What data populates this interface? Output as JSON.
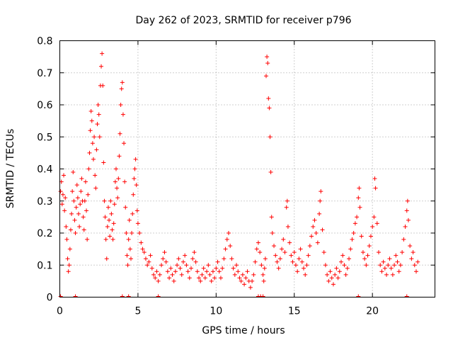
{
  "chart_data": {
    "type": "scatter",
    "title": "Day 262 of 2023, SRMTID for receiver p796",
    "xlabel": "GPS time / hours",
    "ylabel": "SRMTID / TECUs",
    "xlim": [
      0,
      24
    ],
    "ylim": [
      0,
      0.8
    ],
    "x_ticks": [
      0,
      5,
      10,
      15,
      20
    ],
    "y_ticks": [
      0,
      0.1,
      0.2,
      0.3,
      0.4,
      0.5,
      0.6,
      0.7,
      0.8
    ],
    "x_tick_labels": [
      "0",
      "5",
      "10",
      "15",
      "20"
    ],
    "y_tick_labels": [
      "0",
      "0.1",
      "0.2",
      "0.3",
      "0.4",
      "0.5",
      "0.6",
      "0.7",
      "0.8"
    ],
    "grid": true,
    "marker": "+",
    "series": [
      {
        "name": "SRMTID",
        "color": "#ff0000",
        "points": [
          [
            0.05,
            0.33
          ],
          [
            0.1,
            0.36
          ],
          [
            0.15,
            0.29
          ],
          [
            0.2,
            0.32
          ],
          [
            0.25,
            0.38
          ],
          [
            0.3,
            0.27
          ],
          [
            0.35,
            0.31
          ],
          [
            0.4,
            0.22
          ],
          [
            0.45,
            0.18
          ],
          [
            0.5,
            0.12
          ],
          [
            0.55,
            0.08
          ],
          [
            0.6,
            0.1
          ],
          [
            0.65,
            0.15
          ],
          [
            0.7,
            0.21
          ],
          [
            0.75,
            0.26
          ],
          [
            0.8,
            0.33
          ],
          [
            0.85,
            0.39
          ],
          [
            0.9,
            0.3
          ],
          [
            0.95,
            0.24
          ],
          [
            1.0,
            0.2
          ],
          [
            1.05,
            0.28
          ],
          [
            1.1,
            0.35
          ],
          [
            1.15,
            0.31
          ],
          [
            1.2,
            0.26
          ],
          [
            1.25,
            0.22
          ],
          [
            1.3,
            0.29
          ],
          [
            1.35,
            0.33
          ],
          [
            1.4,
            0.37
          ],
          [
            1.45,
            0.3
          ],
          [
            1.5,
            0.25
          ],
          [
            1.55,
            0.21
          ],
          [
            1.6,
            0.3
          ],
          [
            1.65,
            0.36
          ],
          [
            1.7,
            0.27
          ],
          [
            1.75,
            0.18
          ],
          [
            1.8,
            0.32
          ],
          [
            1.85,
            0.4
          ],
          [
            1.9,
            0.45
          ],
          [
            1.95,
            0.52
          ],
          [
            2.0,
            0.58
          ],
          [
            2.05,
            0.55
          ],
          [
            2.1,
            0.48
          ],
          [
            2.15,
            0.43
          ],
          [
            2.2,
            0.5
          ],
          [
            2.25,
            0.38
          ],
          [
            2.3,
            0.34
          ],
          [
            2.35,
            0.46
          ],
          [
            2.4,
            0.54
          ],
          [
            2.45,
            0.6
          ],
          [
            2.5,
            0.57
          ],
          [
            2.55,
            0.5
          ],
          [
            2.6,
            0.66
          ],
          [
            2.65,
            0.72
          ],
          [
            2.7,
            0.76
          ],
          [
            2.75,
            0.66
          ],
          [
            2.8,
            0.42
          ],
          [
            2.85,
            0.3
          ],
          [
            2.9,
            0.25
          ],
          [
            2.95,
            0.18
          ],
          [
            3.0,
            0.12
          ],
          [
            3.05,
            0.22
          ],
          [
            3.1,
            0.28
          ],
          [
            3.15,
            0.24
          ],
          [
            3.2,
            0.19
          ],
          [
            3.25,
            0.3
          ],
          [
            3.3,
            0.26
          ],
          [
            3.35,
            0.21
          ],
          [
            3.4,
            0.18
          ],
          [
            3.45,
            0.23
          ],
          [
            3.5,
            0.29
          ],
          [
            3.55,
            0.36
          ],
          [
            3.6,
            0.4
          ],
          [
            3.65,
            0.34
          ],
          [
            3.7,
            0.31
          ],
          [
            3.75,
            0.37
          ],
          [
            3.8,
            0.44
          ],
          [
            3.85,
            0.51
          ],
          [
            3.9,
            0.6
          ],
          [
            3.95,
            0.65
          ],
          [
            4.0,
            0.67
          ],
          [
            4.05,
            0.57
          ],
          [
            4.1,
            0.48
          ],
          [
            4.15,
            0.36
          ],
          [
            4.2,
            0.28
          ],
          [
            4.25,
            0.2
          ],
          [
            4.3,
            0.13
          ],
          [
            4.35,
            0.1
          ],
          [
            4.4,
            0.18
          ],
          [
            4.45,
            0.24
          ],
          [
            4.5,
            0.15
          ],
          [
            4.55,
            0.12
          ],
          [
            4.6,
            0.2
          ],
          [
            4.65,
            0.26
          ],
          [
            4.7,
            0.32
          ],
          [
            4.75,
            0.37
          ],
          [
            4.8,
            0.4
          ],
          [
            4.85,
            0.43
          ],
          [
            4.9,
            0.35
          ],
          [
            4.95,
            0.27
          ],
          [
            5.0,
            0.23
          ],
          [
            5.1,
            0.2
          ],
          [
            5.2,
            0.17
          ],
          [
            5.3,
            0.15
          ],
          [
            5.4,
            0.14
          ],
          [
            5.5,
            0.12
          ],
          [
            5.6,
            0.1
          ],
          [
            5.7,
            0.11
          ],
          [
            5.8,
            0.13
          ],
          [
            5.9,
            0.09
          ],
          [
            6.0,
            0.07
          ],
          [
            6.1,
            0.06
          ],
          [
            6.2,
            0.08
          ],
          [
            6.3,
            0.05
          ],
          [
            6.4,
            0.07
          ],
          [
            6.5,
            0.1
          ],
          [
            6.6,
            0.12
          ],
          [
            6.7,
            0.14
          ],
          [
            6.8,
            0.11
          ],
          [
            6.9,
            0.08
          ],
          [
            7.0,
            0.06
          ],
          [
            7.1,
            0.09
          ],
          [
            7.2,
            0.07
          ],
          [
            7.3,
            0.05
          ],
          [
            7.4,
            0.08
          ],
          [
            7.5,
            0.1
          ],
          [
            7.6,
            0.12
          ],
          [
            7.7,
            0.09
          ],
          [
            7.8,
            0.07
          ],
          [
            7.9,
            0.11
          ],
          [
            8.0,
            0.13
          ],
          [
            8.1,
            0.1
          ],
          [
            8.2,
            0.08
          ],
          [
            8.3,
            0.06
          ],
          [
            8.4,
            0.09
          ],
          [
            8.5,
            0.12
          ],
          [
            8.6,
            0.14
          ],
          [
            8.7,
            0.11
          ],
          [
            8.8,
            0.08
          ],
          [
            8.9,
            0.06
          ],
          [
            9.0,
            0.05
          ],
          [
            9.1,
            0.07
          ],
          [
            9.2,
            0.09
          ],
          [
            9.3,
            0.06
          ],
          [
            9.4,
            0.08
          ],
          [
            9.5,
            0.1
          ],
          [
            9.6,
            0.07
          ],
          [
            9.7,
            0.05
          ],
          [
            9.8,
            0.08
          ],
          [
            9.9,
            0.06
          ],
          [
            10.0,
            0.09
          ],
          [
            10.1,
            0.11
          ],
          [
            10.2,
            0.08
          ],
          [
            10.3,
            0.06
          ],
          [
            10.4,
            0.09
          ],
          [
            10.5,
            0.12
          ],
          [
            10.6,
            0.15
          ],
          [
            10.7,
            0.18
          ],
          [
            10.8,
            0.2
          ],
          [
            10.9,
            0.16
          ],
          [
            11.0,
            0.12
          ],
          [
            11.1,
            0.09
          ],
          [
            11.2,
            0.07
          ],
          [
            11.3,
            0.1
          ],
          [
            11.4,
            0.08
          ],
          [
            11.5,
            0.06
          ],
          [
            11.6,
            0.05
          ],
          [
            11.7,
            0.07
          ],
          [
            11.8,
            0.04
          ],
          [
            11.9,
            0.06
          ],
          [
            12.0,
            0.08
          ],
          [
            12.1,
            0.05
          ],
          [
            12.2,
            0.03
          ],
          [
            12.3,
            0.05
          ],
          [
            12.4,
            0.07
          ],
          [
            12.5,
            0.11
          ],
          [
            12.6,
            0.15
          ],
          [
            12.7,
            0.17
          ],
          [
            12.8,
            0.14
          ],
          [
            12.9,
            0.1
          ],
          [
            13.0,
            0.07
          ],
          [
            13.05,
            0.05
          ],
          [
            13.1,
            0.09
          ],
          [
            13.15,
            0.12
          ],
          [
            13.2,
            0.69
          ],
          [
            13.25,
            0.75
          ],
          [
            13.3,
            0.73
          ],
          [
            13.35,
            0.62
          ],
          [
            13.4,
            0.59
          ],
          [
            13.45,
            0.5
          ],
          [
            13.5,
            0.39
          ],
          [
            13.55,
            0.25
          ],
          [
            13.6,
            0.2
          ],
          [
            13.7,
            0.16
          ],
          [
            13.8,
            0.13
          ],
          [
            13.9,
            0.11
          ],
          [
            14.0,
            0.09
          ],
          [
            14.1,
            0.12
          ],
          [
            14.2,
            0.15
          ],
          [
            14.3,
            0.18
          ],
          [
            14.4,
            0.14
          ],
          [
            14.5,
            0.28
          ],
          [
            14.55,
            0.3
          ],
          [
            14.6,
            0.22
          ],
          [
            14.7,
            0.17
          ],
          [
            14.8,
            0.13
          ],
          [
            14.9,
            0.11
          ],
          [
            15.0,
            0.14
          ],
          [
            15.1,
            0.1
          ],
          [
            15.2,
            0.08
          ],
          [
            15.3,
            0.12
          ],
          [
            15.4,
            0.15
          ],
          [
            15.5,
            0.11
          ],
          [
            15.6,
            0.09
          ],
          [
            15.7,
            0.07
          ],
          [
            15.8,
            0.1
          ],
          [
            15.9,
            0.13
          ],
          [
            16.0,
            0.16
          ],
          [
            16.1,
            0.19
          ],
          [
            16.2,
            0.22
          ],
          [
            16.3,
            0.24
          ],
          [
            16.4,
            0.2
          ],
          [
            16.5,
            0.17
          ],
          [
            16.6,
            0.26
          ],
          [
            16.65,
            0.3
          ],
          [
            16.7,
            0.33
          ],
          [
            16.8,
            0.21
          ],
          [
            16.9,
            0.14
          ],
          [
            17.0,
            0.1
          ],
          [
            17.1,
            0.07
          ],
          [
            17.2,
            0.05
          ],
          [
            17.3,
            0.08
          ],
          [
            17.4,
            0.06
          ],
          [
            17.5,
            0.04
          ],
          [
            17.6,
            0.07
          ],
          [
            17.7,
            0.09
          ],
          [
            17.8,
            0.06
          ],
          [
            17.9,
            0.08
          ],
          [
            18.0,
            0.11
          ],
          [
            18.1,
            0.13
          ],
          [
            18.2,
            0.1
          ],
          [
            18.3,
            0.07
          ],
          [
            18.4,
            0.09
          ],
          [
            18.5,
            0.12
          ],
          [
            18.6,
            0.15
          ],
          [
            18.7,
            0.18
          ],
          [
            18.8,
            0.2
          ],
          [
            18.9,
            0.23
          ],
          [
            19.0,
            0.25
          ],
          [
            19.1,
            0.31
          ],
          [
            19.15,
            0.34
          ],
          [
            19.2,
            0.28
          ],
          [
            19.3,
            0.19
          ],
          [
            19.4,
            0.14
          ],
          [
            19.5,
            0.12
          ],
          [
            19.6,
            0.1
          ],
          [
            19.7,
            0.13
          ],
          [
            19.8,
            0.16
          ],
          [
            19.9,
            0.19
          ],
          [
            20.0,
            0.22
          ],
          [
            20.1,
            0.25
          ],
          [
            20.15,
            0.37
          ],
          [
            20.2,
            0.34
          ],
          [
            20.3,
            0.23
          ],
          [
            20.4,
            0.14
          ],
          [
            20.5,
            0.1
          ],
          [
            20.6,
            0.08
          ],
          [
            20.7,
            0.11
          ],
          [
            20.8,
            0.09
          ],
          [
            20.9,
            0.07
          ],
          [
            21.0,
            0.1
          ],
          [
            21.1,
            0.12
          ],
          [
            21.2,
            0.09
          ],
          [
            21.3,
            0.07
          ],
          [
            21.4,
            0.1
          ],
          [
            21.5,
            0.13
          ],
          [
            21.6,
            0.11
          ],
          [
            21.7,
            0.08
          ],
          [
            21.8,
            0.1
          ],
          [
            21.9,
            0.14
          ],
          [
            22.0,
            0.18
          ],
          [
            22.1,
            0.22
          ],
          [
            22.2,
            0.27
          ],
          [
            22.25,
            0.3
          ],
          [
            22.3,
            0.24
          ],
          [
            22.4,
            0.16
          ],
          [
            22.5,
            0.12
          ],
          [
            22.6,
            0.14
          ],
          [
            22.7,
            0.1
          ],
          [
            22.8,
            0.08
          ],
          [
            22.9,
            0.11
          ]
        ]
      }
    ],
    "near_zero_markers": [
      0.05,
      1.0,
      4.0,
      4.4,
      6.3,
      12.7,
      12.85,
      13.0,
      19.1,
      22.2
    ]
  }
}
